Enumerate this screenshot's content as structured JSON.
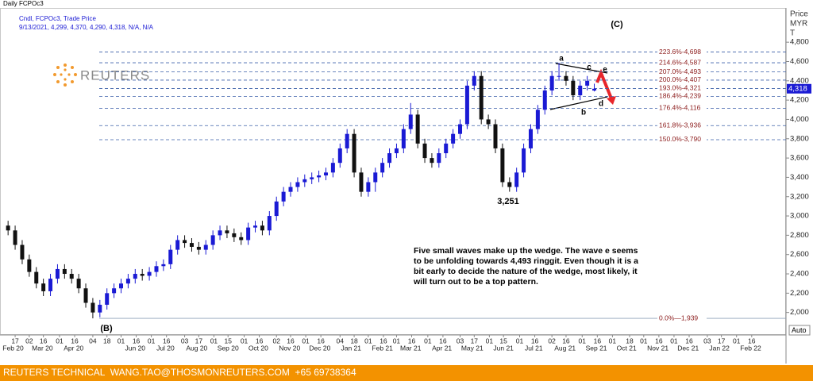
{
  "window_title": "Daily FCPOc3",
  "logo": "REUTERS",
  "footer": "REUTERS TECHNICAL  WANG.TAO@THOSMONREUTERS.COM  +65 69738364",
  "chart_data": {
    "type": "candlestick",
    "legend_lines": [
      "Cndl, FCPOc3, Trade Price",
      "9/13/2021, 4,299, 4,370, 4,290, 4,318, N/A, N/A"
    ],
    "y_axis_title": [
      "Price",
      "MYR",
      "T"
    ],
    "up_color": "#1a1ad4",
    "down_color": "#111111",
    "x": [
      "2020-02-10",
      "2020-02-17",
      "2020-02-24",
      "2020-03-02",
      "2020-03-09",
      "2020-03-16",
      "2020-03-23",
      "2020-03-30",
      "2020-04-06",
      "2020-04-13",
      "2020-04-20",
      "2020-04-27",
      "2020-05-04",
      "2020-05-11",
      "2020-05-18",
      "2020-05-25",
      "2020-06-01",
      "2020-06-08",
      "2020-06-15",
      "2020-06-22",
      "2020-06-29",
      "2020-07-06",
      "2020-07-13",
      "2020-07-20",
      "2020-07-27",
      "2020-08-03",
      "2020-08-10",
      "2020-08-17",
      "2020-08-24",
      "2020-08-31",
      "2020-09-07",
      "2020-09-14",
      "2020-09-21",
      "2020-09-28",
      "2020-10-05",
      "2020-10-12",
      "2020-10-19",
      "2020-10-26",
      "2020-11-02",
      "2020-11-09",
      "2020-11-16",
      "2020-11-23",
      "2020-11-30",
      "2020-12-07",
      "2020-12-14",
      "2020-12-21",
      "2020-12-28",
      "2021-01-04",
      "2021-01-11",
      "2021-01-18",
      "2021-01-25",
      "2021-02-01",
      "2021-02-08",
      "2021-02-15",
      "2021-02-22",
      "2021-03-01",
      "2021-03-08",
      "2021-03-15",
      "2021-03-22",
      "2021-03-29",
      "2021-04-05",
      "2021-04-12",
      "2021-04-19",
      "2021-04-26",
      "2021-05-03",
      "2021-05-10",
      "2021-05-17",
      "2021-05-24",
      "2021-05-31",
      "2021-06-07",
      "2021-06-14",
      "2021-06-21",
      "2021-06-28",
      "2021-07-05",
      "2021-07-12",
      "2021-07-19",
      "2021-07-26",
      "2021-08-02",
      "2021-08-09",
      "2021-08-16",
      "2021-08-23",
      "2021-08-30",
      "2021-09-06",
      "2021-09-13"
    ],
    "open": [
      2900,
      2850,
      2700,
      2550,
      2420,
      2300,
      2220,
      2350,
      2450,
      2400,
      2350,
      2250,
      2100,
      2000,
      2080,
      2200,
      2250,
      2300,
      2350,
      2400,
      2380,
      2420,
      2480,
      2500,
      2650,
      2750,
      2720,
      2680,
      2650,
      2700,
      2800,
      2850,
      2820,
      2780,
      2750,
      2880,
      2900,
      2850,
      3000,
      3150,
      3250,
      3300,
      3350,
      3380,
      3400,
      3420,
      3450,
      3550,
      3700,
      3850,
      3450,
      3250,
      3350,
      3450,
      3550,
      3650,
      3700,
      3900,
      4050,
      3750,
      3600,
      3550,
      3650,
      3750,
      3850,
      3950,
      4350,
      4450,
      4000,
      3950,
      3700,
      3350,
      3300,
      3450,
      3700,
      3900,
      4100,
      4300,
      4450,
      4450,
      4400,
      4250,
      4350,
      4299
    ],
    "high": [
      2950,
      2900,
      2750,
      2600,
      2470,
      2350,
      2400,
      2500,
      2500,
      2450,
      2400,
      2300,
      2150,
      2130,
      2250,
      2300,
      2350,
      2400,
      2450,
      2450,
      2470,
      2530,
      2550,
      2700,
      2800,
      2800,
      2770,
      2730,
      2750,
      2850,
      2900,
      2900,
      2870,
      2830,
      2930,
      2950,
      2950,
      3050,
      3200,
      3300,
      3350,
      3400,
      3430,
      3450,
      3470,
      3500,
      3600,
      3750,
      3900,
      3900,
      3500,
      3400,
      3500,
      3600,
      3700,
      3750,
      3950,
      4170,
      4100,
      3800,
      3650,
      3700,
      3800,
      3900,
      4000,
      4400,
      4500,
      4500,
      4050,
      4000,
      3750,
      3400,
      3500,
      3750,
      3950,
      4150,
      4350,
      4500,
      4587,
      4500,
      4450,
      4400,
      4450,
      4370
    ],
    "low": [
      2800,
      2650,
      2500,
      2370,
      2250,
      2170,
      2170,
      2300,
      2350,
      2300,
      2200,
      2050,
      1939,
      1950,
      2030,
      2150,
      2200,
      2250,
      2300,
      2330,
      2330,
      2370,
      2430,
      2450,
      2600,
      2670,
      2630,
      2600,
      2600,
      2650,
      2750,
      2770,
      2730,
      2700,
      2700,
      2830,
      2800,
      2800,
      2950,
      3100,
      3200,
      3250,
      3300,
      3330,
      3350,
      3370,
      3400,
      3500,
      3650,
      3400,
      3200,
      3200,
      3250,
      3400,
      3500,
      3600,
      3650,
      3850,
      3700,
      3550,
      3500,
      3500,
      3600,
      3700,
      3800,
      3900,
      4300,
      3950,
      3900,
      3650,
      3300,
      3251,
      3250,
      3400,
      3650,
      3850,
      4050,
      4250,
      4400,
      4350,
      4200,
      4200,
      4300,
      4290
    ],
    "close": [
      2850,
      2700,
      2550,
      2420,
      2300,
      2220,
      2350,
      2450,
      2400,
      2350,
      2250,
      2100,
      2000,
      2080,
      2200,
      2250,
      2300,
      2350,
      2400,
      2380,
      2420,
      2480,
      2500,
      2650,
      2750,
      2720,
      2680,
      2650,
      2700,
      2800,
      2850,
      2820,
      2780,
      2750,
      2880,
      2900,
      2850,
      3000,
      3150,
      3250,
      3300,
      3350,
      3380,
      3400,
      3420,
      3450,
      3550,
      3700,
      3850,
      3450,
      3250,
      3350,
      3450,
      3550,
      3650,
      3700,
      3900,
      4050,
      3750,
      3600,
      3550,
      3650,
      3750,
      3850,
      3950,
      4350,
      4450,
      4000,
      3950,
      3700,
      3350,
      3300,
      3450,
      3700,
      3900,
      4100,
      4300,
      4450,
      4450,
      4400,
      4250,
      4350,
      4400,
      4318
    ],
    "last_label": "4,318",
    "xlim": [
      "2020-02-02",
      "2022-03-22"
    ],
    "ylim": [
      1767,
      5155
    ],
    "yticks": [
      {
        "value": 2000,
        "label": "2,000"
      },
      {
        "value": 2200,
        "label": "2,200"
      },
      {
        "value": 2400,
        "label": "2,400"
      },
      {
        "value": 2600,
        "label": "2,600"
      },
      {
        "value": 2800,
        "label": "2,800"
      },
      {
        "value": 3000,
        "label": "3,000"
      },
      {
        "value": 3200,
        "label": "3,200"
      },
      {
        "value": 3400,
        "label": "3,400"
      },
      {
        "value": 3600,
        "label": "3,600"
      },
      {
        "value": 3800,
        "label": "3,800"
      },
      {
        "value": 4000,
        "label": "4,000"
      },
      {
        "value": 4200,
        "label": "4,200"
      },
      {
        "value": 4400,
        "label": "4,400"
      },
      {
        "value": 4600,
        "label": "4,600"
      },
      {
        "value": 4800,
        "label": "4,800"
      }
    ],
    "xticks": [
      {
        "value": "2020-02-17",
        "label": "17"
      },
      {
        "value": "2020-03-02",
        "label": "02"
      },
      {
        "value": "2020-03-16",
        "label": "16"
      },
      {
        "value": "2020-04-01",
        "label": "01"
      },
      {
        "value": "2020-04-16",
        "label": "16"
      },
      {
        "value": "2020-05-04",
        "label": "04"
      },
      {
        "value": "2020-05-18",
        "label": "18"
      },
      {
        "value": "2020-06-01",
        "label": "01"
      },
      {
        "value": "2020-06-16",
        "label": "16"
      },
      {
        "value": "2020-07-01",
        "label": "01"
      },
      {
        "value": "2020-07-16",
        "label": "16"
      },
      {
        "value": "2020-08-03",
        "label": "03"
      },
      {
        "value": "2020-08-17",
        "label": "17"
      },
      {
        "value": "2020-09-01",
        "label": "01"
      },
      {
        "value": "2020-09-15",
        "label": "15"
      },
      {
        "value": "2020-10-01",
        "label": "01"
      },
      {
        "value": "2020-10-16",
        "label": "16"
      },
      {
        "value": "2020-11-02",
        "label": "02"
      },
      {
        "value": "2020-11-16",
        "label": "16"
      },
      {
        "value": "2020-12-01",
        "label": "01"
      },
      {
        "value": "2020-12-16",
        "label": "16"
      },
      {
        "value": "2021-01-04",
        "label": "04"
      },
      {
        "value": "2021-01-18",
        "label": "18"
      },
      {
        "value": "2021-02-01",
        "label": "01"
      },
      {
        "value": "2021-02-16",
        "label": "16"
      },
      {
        "value": "2021-03-01",
        "label": "01"
      },
      {
        "value": "2021-03-16",
        "label": "16"
      },
      {
        "value": "2021-04-01",
        "label": "01"
      },
      {
        "value": "2021-04-16",
        "label": "16"
      },
      {
        "value": "2021-05-03",
        "label": "03"
      },
      {
        "value": "2021-05-17",
        "label": "17"
      },
      {
        "value": "2021-06-01",
        "label": "01"
      },
      {
        "value": "2021-06-15",
        "label": "15"
      },
      {
        "value": "2021-07-01",
        "label": "01"
      },
      {
        "value": "2021-07-16",
        "label": "16"
      },
      {
        "value": "2021-08-02",
        "label": "02"
      },
      {
        "value": "2021-08-16",
        "label": "16"
      },
      {
        "value": "2021-09-01",
        "label": "01"
      },
      {
        "value": "2021-09-16",
        "label": "16"
      },
      {
        "value": "2021-10-01",
        "label": "01"
      },
      {
        "value": "2021-10-18",
        "label": "18"
      },
      {
        "value": "2021-11-01",
        "label": "01"
      },
      {
        "value": "2021-11-16",
        "label": "16"
      },
      {
        "value": "2021-12-01",
        "label": "01"
      },
      {
        "value": "2021-12-16",
        "label": "16"
      },
      {
        "value": "2022-01-03",
        "label": "03"
      },
      {
        "value": "2022-01-17",
        "label": "17"
      },
      {
        "value": "2022-02-01",
        "label": "01"
      },
      {
        "value": "2022-02-16",
        "label": "16"
      }
    ],
    "month_ticks": [
      {
        "value": "2020-02-15",
        "label": "Feb 20"
      },
      {
        "value": "2020-03-15",
        "label": "Mar 20"
      },
      {
        "value": "2020-04-15",
        "label": "Apr 20"
      },
      {
        "value": "2020-06-15",
        "label": "Jun 20"
      },
      {
        "value": "2020-07-15",
        "label": "Jul 20"
      },
      {
        "value": "2020-08-15",
        "label": "Aug 20"
      },
      {
        "value": "2020-09-15",
        "label": "Sep 20"
      },
      {
        "value": "2020-10-15",
        "label": "Oct 20"
      },
      {
        "value": "2020-11-15",
        "label": "Nov 20"
      },
      {
        "value": "2020-12-15",
        "label": "Dec 20"
      },
      {
        "value": "2021-01-15",
        "label": "Jan 21"
      },
      {
        "value": "2021-02-15",
        "label": "Feb 21"
      },
      {
        "value": "2021-03-15",
        "label": "Mar 21"
      },
      {
        "value": "2021-04-15",
        "label": "Apr 21"
      },
      {
        "value": "2021-05-15",
        "label": "May 21"
      },
      {
        "value": "2021-06-15",
        "label": "Jun 21"
      },
      {
        "value": "2021-07-15",
        "label": "Jul 21"
      },
      {
        "value": "2021-08-15",
        "label": "Aug 21"
      },
      {
        "value": "2021-09-15",
        "label": "Sep 21"
      },
      {
        "value": "2021-10-15",
        "label": "Oct 21"
      },
      {
        "value": "2021-11-15",
        "label": "Nov 21"
      },
      {
        "value": "2021-12-15",
        "label": "Dec 21"
      },
      {
        "value": "2022-01-15",
        "label": "Jan 22"
      },
      {
        "value": "2022-02-15",
        "label": "Feb 22"
      }
    ],
    "levels": [
      {
        "label": "223.6%-4,698",
        "value": 4698
      },
      {
        "label": "214.6%-4,587",
        "value": 4587
      },
      {
        "label": "207.0%-4,493",
        "value": 4493
      },
      {
        "label": "200.0%-4,407",
        "value": 4407
      },
      {
        "label": "193.0%-4,321",
        "value": 4321
      },
      {
        "label": "186.4%-4,239",
        "value": 4239
      },
      {
        "label": "176.4%-4,116",
        "value": 4116
      },
      {
        "label": "161.8%-3,936",
        "value": 3936
      },
      {
        "label": "150.0%-3,790",
        "value": 3790
      },
      {
        "label": "0.0%—1,939",
        "value": 1939
      }
    ],
    "level_color": "#8b1a1a",
    "level_line_color": "#3a5fa8",
    "annotations": [
      "a",
      "b",
      "c",
      "d",
      "e",
      "(B)",
      "(C)",
      "3,251"
    ],
    "note": [
      "Five small waves make up the wedge. The wave e seems",
      "to be unfolding towards 4,493 ringgit. Even though it is a",
      "bit early to decide the nature of the wedge, most likely, it",
      "will turn out to be a top pattern."
    ],
    "auto": "Auto"
  }
}
